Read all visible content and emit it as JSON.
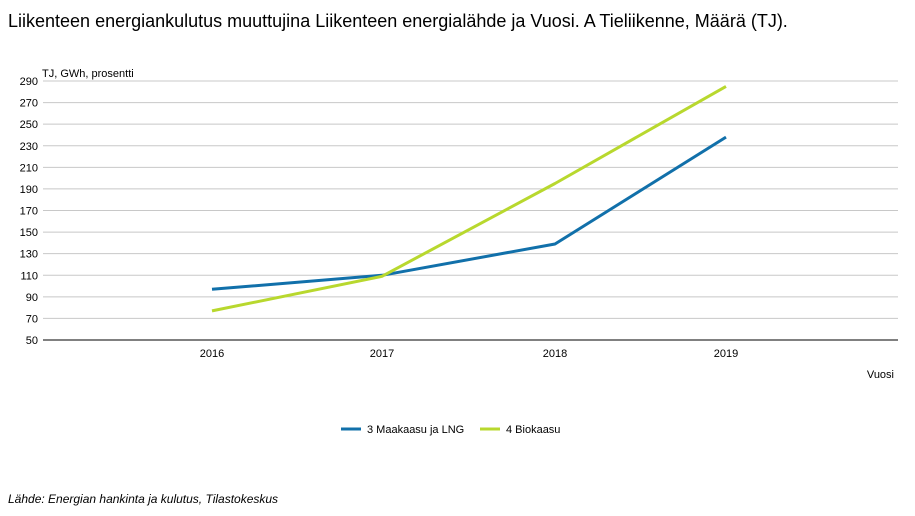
{
  "chart_data": {
    "type": "line",
    "title": "Liikenteen energiankulutus muuttujina Liikenteen energialähde ja Vuosi. A Tieliikenne, Määrä (TJ).",
    "ylabel": "TJ, GWh, prosentti",
    "xlabel": "Vuosi",
    "categories": [
      "2016",
      "2017",
      "2018",
      "2019"
    ],
    "ylim": [
      50,
      290
    ],
    "yticks": [
      50,
      70,
      90,
      110,
      130,
      150,
      170,
      190,
      210,
      230,
      250,
      270,
      290
    ],
    "grid": true,
    "legend": "bottom-center",
    "series": [
      {
        "name": "3 Maakaasu ja LNG",
        "color": "#1170aa",
        "values": [
          97,
          110,
          139,
          238
        ]
      },
      {
        "name": "4 Biokaasu",
        "color": "#b8d82e",
        "values": [
          77,
          109,
          195,
          285
        ]
      }
    ]
  },
  "source": "Lähde: Energian hankinta ja kulutus, Tilastokeskus"
}
